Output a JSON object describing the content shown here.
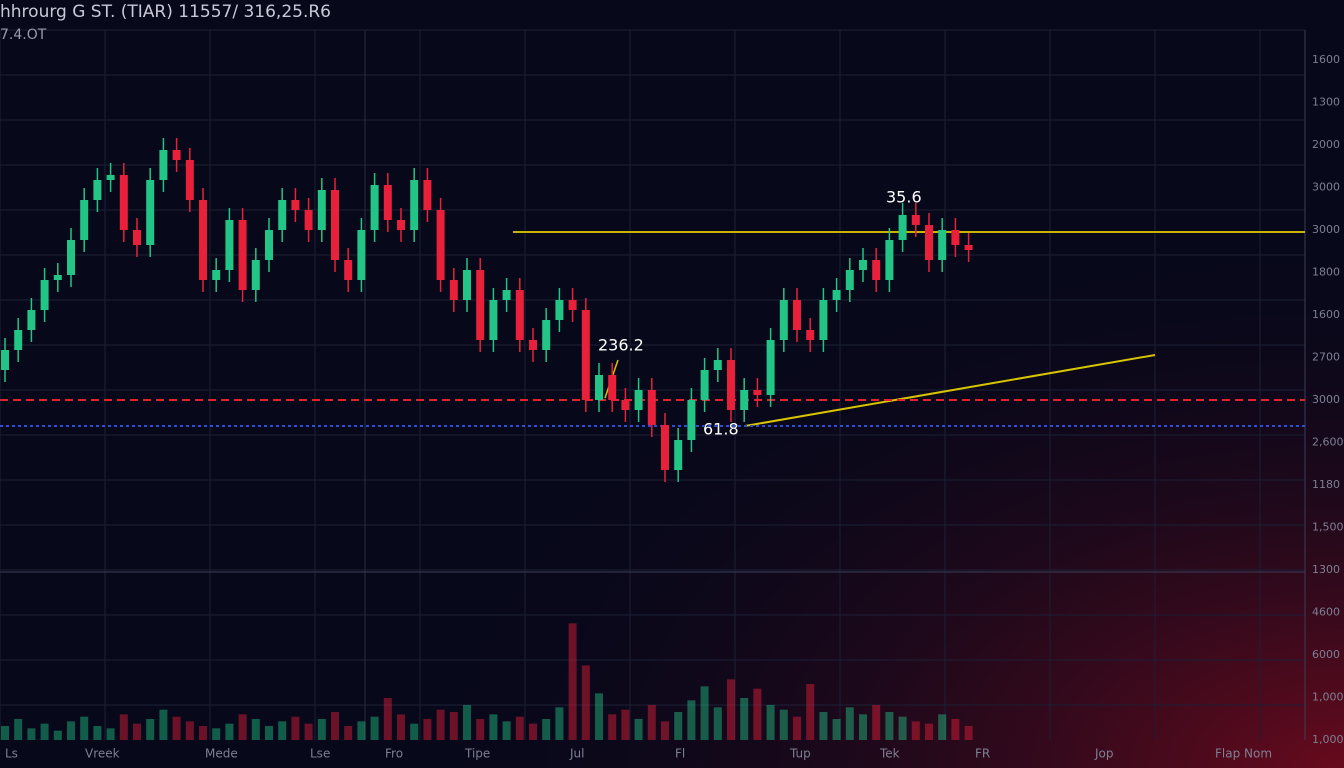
{
  "chart_data": {
    "type": "candlestick",
    "title": "hhrourg G ST. (TIAR) 11557/ 316,25.R6",
    "subtitle": "7.4.OT",
    "ylim": [
      0,
      540
    ],
    "vlim": [
      0,
      120
    ],
    "open": [
      200,
      220,
      240,
      260,
      290,
      295,
      330,
      370,
      390,
      395,
      340,
      325,
      390,
      420,
      410,
      370,
      290,
      300,
      350,
      280,
      310,
      340,
      370,
      360,
      340,
      380,
      310,
      290,
      340,
      385,
      350,
      340,
      390,
      360,
      290,
      270,
      300,
      230,
      270,
      280,
      230,
      220,
      250,
      270,
      260,
      170,
      195,
      170,
      160,
      180,
      145,
      100,
      130,
      170,
      200,
      210,
      160,
      180,
      175,
      230,
      270,
      240,
      230,
      270,
      280,
      300,
      310,
      290,
      330,
      355,
      345,
      310,
      340,
      325
    ],
    "high": [
      232,
      252,
      272,
      302,
      307,
      342,
      382,
      402,
      407,
      407,
      352,
      402,
      432,
      432,
      422,
      382,
      312,
      362,
      362,
      322,
      352,
      382,
      382,
      372,
      392,
      392,
      322,
      352,
      397,
      397,
      362,
      402,
      402,
      372,
      302,
      312,
      312,
      282,
      292,
      292,
      242,
      262,
      282,
      282,
      272,
      207,
      207,
      182,
      192,
      192,
      157,
      142,
      182,
      212,
      222,
      222,
      192,
      192,
      242,
      282,
      282,
      252,
      282,
      292,
      312,
      322,
      322,
      342,
      367,
      367,
      357,
      352,
      352,
      337
    ],
    "low": [
      188,
      208,
      228,
      248,
      278,
      283,
      318,
      358,
      378,
      328,
      313,
      313,
      378,
      398,
      358,
      278,
      278,
      288,
      268,
      268,
      298,
      328,
      348,
      328,
      328,
      298,
      278,
      278,
      328,
      338,
      328,
      328,
      348,
      278,
      258,
      258,
      218,
      218,
      258,
      218,
      208,
      208,
      238,
      248,
      158,
      158,
      158,
      148,
      148,
      133,
      88,
      88,
      118,
      158,
      188,
      148,
      148,
      163,
      163,
      218,
      228,
      218,
      218,
      258,
      268,
      288,
      278,
      278,
      318,
      333,
      298,
      298,
      313,
      308
    ],
    "close": [
      220,
      240,
      260,
      290,
      295,
      330,
      370,
      390,
      395,
      340,
      325,
      390,
      420,
      410,
      370,
      290,
      300,
      350,
      280,
      310,
      340,
      370,
      360,
      340,
      380,
      310,
      290,
      340,
      385,
      350,
      340,
      390,
      360,
      290,
      270,
      300,
      230,
      270,
      280,
      230,
      220,
      250,
      270,
      260,
      170,
      195,
      170,
      160,
      180,
      145,
      100,
      130,
      170,
      200,
      210,
      160,
      180,
      175,
      230,
      270,
      240,
      230,
      270,
      280,
      300,
      310,
      290,
      330,
      355,
      345,
      310,
      340,
      325,
      320
    ],
    "volume": [
      12,
      18,
      10,
      14,
      8,
      16,
      20,
      12,
      10,
      22,
      14,
      18,
      26,
      20,
      16,
      12,
      10,
      14,
      22,
      18,
      12,
      16,
      20,
      14,
      18,
      24,
      12,
      16,
      20,
      36,
      22,
      14,
      18,
      26,
      24,
      30,
      18,
      22,
      16,
      20,
      14,
      18,
      28,
      100,
      64,
      40,
      22,
      26,
      18,
      30,
      16,
      24,
      34,
      46,
      28,
      52,
      36,
      44,
      30,
      26,
      20,
      48,
      24,
      18,
      28,
      22,
      30,
      24,
      20,
      16,
      14,
      22,
      18,
      12
    ],
    "up_color": "#22c585",
    "down_color": "#e8203a",
    "levels": [
      {
        "value": 338,
        "color": "#c9b300",
        "style": "solid"
      },
      {
        "value": 170,
        "color": "#e3222f",
        "style": "dashed"
      },
      {
        "value": 144,
        "color": "#2a4fd8",
        "style": "dotted"
      }
    ],
    "annotations": [
      "236.2",
      "61.8",
      "35.6"
    ],
    "right_axis_labels": [
      "1600",
      "1300",
      "2000",
      "3000",
      "3000",
      "1800",
      "1600",
      "2700",
      "3000",
      "2,600",
      "1180",
      "1,500",
      "1300",
      "4600",
      "6000",
      "1,000",
      "1,000"
    ],
    "x_labels": [
      "Ls",
      "Vreek",
      "Mede",
      "Lse",
      "Fro",
      "Tipe",
      "Jul",
      "Fl",
      "Tup",
      "Tek",
      "FR",
      "Jop",
      "Flap Nom"
    ]
  }
}
